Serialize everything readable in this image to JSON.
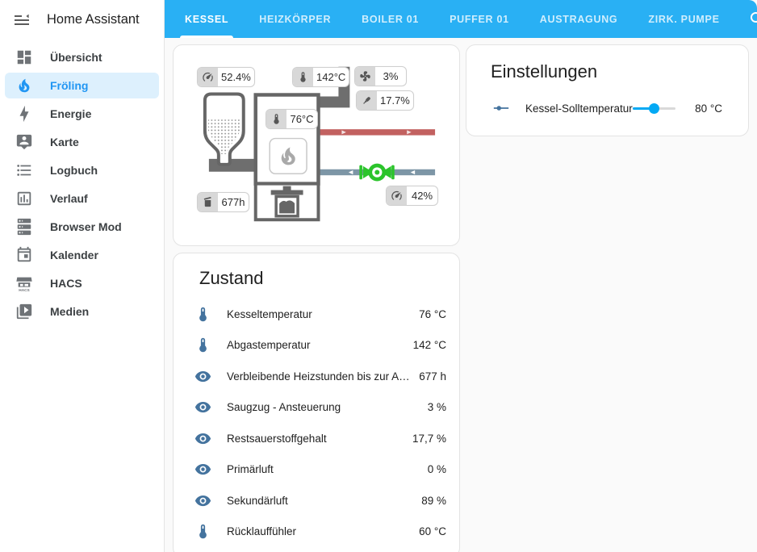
{
  "app": {
    "title": "Home Assistant"
  },
  "header": {
    "color": "#29b0f4",
    "tabs": [
      {
        "label": "KESSEL",
        "active": true
      },
      {
        "label": "HEIZKÖRPER",
        "active": false
      },
      {
        "label": "BOILER 01",
        "active": false
      },
      {
        "label": "PUFFER 01",
        "active": false
      },
      {
        "label": "AUSTRAGUNG",
        "active": false
      },
      {
        "label": "ZIRK. PUMPE",
        "active": false
      }
    ],
    "actions": [
      {
        "icon": "search-icon"
      },
      {
        "icon": "assist-icon"
      },
      {
        "icon": "overflow-menu-icon"
      }
    ]
  },
  "sidebar": {
    "items": [
      {
        "label": "Übersicht",
        "icon": "dashboard-icon",
        "selected": false
      },
      {
        "label": "Fröling",
        "icon": "fire-icon",
        "selected": true
      },
      {
        "label": "Energie",
        "icon": "lightning-icon",
        "selected": false
      },
      {
        "label": "Karte",
        "icon": "map-account-icon",
        "selected": false
      },
      {
        "label": "Logbuch",
        "icon": "list-icon",
        "selected": false
      },
      {
        "label": "Verlauf",
        "icon": "chart-icon",
        "selected": false
      },
      {
        "label": "Browser Mod",
        "icon": "server-icon",
        "selected": false
      },
      {
        "label": "Kalender",
        "icon": "calendar-icon",
        "selected": false
      },
      {
        "label": "HACS",
        "icon": "hacs-icon",
        "selected": false
      },
      {
        "label": "Medien",
        "icon": "media-icon",
        "selected": false
      }
    ]
  },
  "diagram": {
    "badges": {
      "hopper_level": {
        "icon": "gauge-icon",
        "value": "52.4%"
      },
      "flue_temp": {
        "icon": "thermometer-icon",
        "value": "142°C"
      },
      "fan": {
        "icon": "fan-icon",
        "value": "3%"
      },
      "oxygen": {
        "icon": "lambda-probe-icon",
        "value": "17.7%"
      },
      "boiler_temp": {
        "icon": "thermometer-icon",
        "value": "76°C"
      },
      "ash_hours": {
        "icon": "ash-bin-icon",
        "value": "677h"
      },
      "return_mixer": {
        "icon": "gauge-icon",
        "value": "42%"
      }
    },
    "colors": {
      "supply_pipe": "#c26160",
      "return_pipe": "#7d96a6",
      "pump_valve": "#2bc42b",
      "flue_pipe": "#6e6e6e"
    }
  },
  "settings": {
    "title": "Einstellungen",
    "rows": [
      {
        "icon": "ray-vertex-icon",
        "label": "Kessel-Solltemperatur",
        "value": "80 °C",
        "slider_percent": 49
      }
    ]
  },
  "state": {
    "title": "Zustand",
    "rows": [
      {
        "icon": "thermometer-icon",
        "label": "Kesseltemperatur",
        "value": "76 °C"
      },
      {
        "icon": "thermometer-icon",
        "label": "Abgastemperatur",
        "value": "142 °C"
      },
      {
        "icon": "eye-icon",
        "label": "Verbleibende Heizstunden bis zur Asche entleer...",
        "value": "677 h"
      },
      {
        "icon": "eye-icon",
        "label": "Saugzug - Ansteuerung",
        "value": "3 %"
      },
      {
        "icon": "eye-icon",
        "label": "Restsauerstoffgehalt",
        "value": "17,7 %"
      },
      {
        "icon": "eye-icon",
        "label": "Primärluft",
        "value": "0 %"
      },
      {
        "icon": "eye-icon",
        "label": "Sekundärluft",
        "value": "89 %"
      },
      {
        "icon": "thermometer-icon",
        "label": "Rücklauffühler",
        "value": "60 °C"
      }
    ]
  }
}
